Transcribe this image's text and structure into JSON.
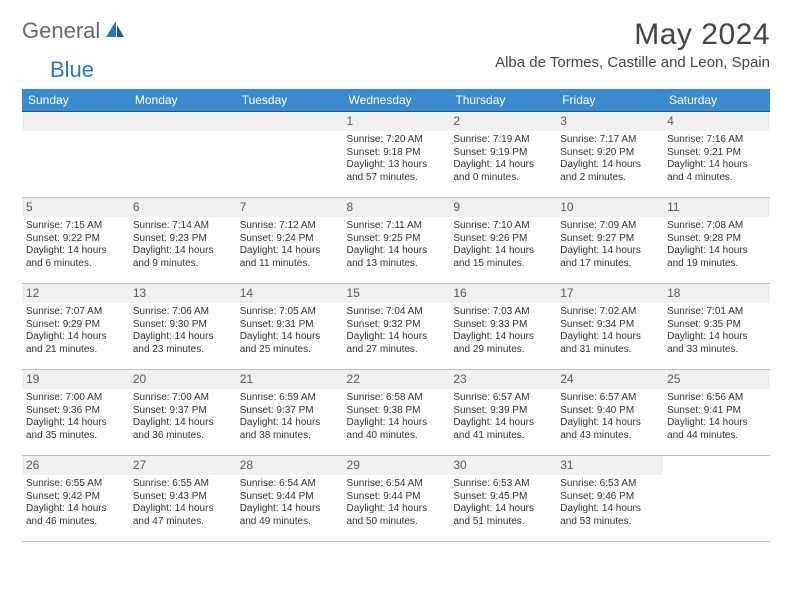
{
  "brand": {
    "part_a": "General",
    "part_b": "Blue"
  },
  "title": "May 2024",
  "location": "Alba de Tormes, Castille and Leon, Spain",
  "colors": {
    "header_bg": "#3a8bd0",
    "header_text": "#ffffff",
    "row_divider": "#1f5c8e",
    "day_bg": "#eef0f2",
    "body_text": "#333333",
    "brand_gray": "#6a6a6a",
    "brand_blue": "#2b78c2"
  },
  "typography": {
    "title_fontsize": 30,
    "location_fontsize": 15,
    "header_fontsize": 12,
    "daynum_fontsize": 12,
    "cell_fontsize": 10
  },
  "layout": {
    "columns": 7,
    "rows": 5,
    "first_day_column_index": 3
  },
  "weekdays": [
    "Sunday",
    "Monday",
    "Tuesday",
    "Wednesday",
    "Thursday",
    "Friday",
    "Saturday"
  ],
  "days": {
    "1": {
      "sunrise": "Sunrise: 7:20 AM",
      "sunset": "Sunset: 9:18 PM",
      "daylight": "Daylight: 13 hours and 57 minutes."
    },
    "2": {
      "sunrise": "Sunrise: 7:19 AM",
      "sunset": "Sunset: 9:19 PM",
      "daylight": "Daylight: 14 hours and 0 minutes."
    },
    "3": {
      "sunrise": "Sunrise: 7:17 AM",
      "sunset": "Sunset: 9:20 PM",
      "daylight": "Daylight: 14 hours and 2 minutes."
    },
    "4": {
      "sunrise": "Sunrise: 7:16 AM",
      "sunset": "Sunset: 9:21 PM",
      "daylight": "Daylight: 14 hours and 4 minutes."
    },
    "5": {
      "sunrise": "Sunrise: 7:15 AM",
      "sunset": "Sunset: 9:22 PM",
      "daylight": "Daylight: 14 hours and 6 minutes."
    },
    "6": {
      "sunrise": "Sunrise: 7:14 AM",
      "sunset": "Sunset: 9:23 PM",
      "daylight": "Daylight: 14 hours and 9 minutes."
    },
    "7": {
      "sunrise": "Sunrise: 7:12 AM",
      "sunset": "Sunset: 9:24 PM",
      "daylight": "Daylight: 14 hours and 11 minutes."
    },
    "8": {
      "sunrise": "Sunrise: 7:11 AM",
      "sunset": "Sunset: 9:25 PM",
      "daylight": "Daylight: 14 hours and 13 minutes."
    },
    "9": {
      "sunrise": "Sunrise: 7:10 AM",
      "sunset": "Sunset: 9:26 PM",
      "daylight": "Daylight: 14 hours and 15 minutes."
    },
    "10": {
      "sunrise": "Sunrise: 7:09 AM",
      "sunset": "Sunset: 9:27 PM",
      "daylight": "Daylight: 14 hours and 17 minutes."
    },
    "11": {
      "sunrise": "Sunrise: 7:08 AM",
      "sunset": "Sunset: 9:28 PM",
      "daylight": "Daylight: 14 hours and 19 minutes."
    },
    "12": {
      "sunrise": "Sunrise: 7:07 AM",
      "sunset": "Sunset: 9:29 PM",
      "daylight": "Daylight: 14 hours and 21 minutes."
    },
    "13": {
      "sunrise": "Sunrise: 7:06 AM",
      "sunset": "Sunset: 9:30 PM",
      "daylight": "Daylight: 14 hours and 23 minutes."
    },
    "14": {
      "sunrise": "Sunrise: 7:05 AM",
      "sunset": "Sunset: 9:31 PM",
      "daylight": "Daylight: 14 hours and 25 minutes."
    },
    "15": {
      "sunrise": "Sunrise: 7:04 AM",
      "sunset": "Sunset: 9:32 PM",
      "daylight": "Daylight: 14 hours and 27 minutes."
    },
    "16": {
      "sunrise": "Sunrise: 7:03 AM",
      "sunset": "Sunset: 9:33 PM",
      "daylight": "Daylight: 14 hours and 29 minutes."
    },
    "17": {
      "sunrise": "Sunrise: 7:02 AM",
      "sunset": "Sunset: 9:34 PM",
      "daylight": "Daylight: 14 hours and 31 minutes."
    },
    "18": {
      "sunrise": "Sunrise: 7:01 AM",
      "sunset": "Sunset: 9:35 PM",
      "daylight": "Daylight: 14 hours and 33 minutes."
    },
    "19": {
      "sunrise": "Sunrise: 7:00 AM",
      "sunset": "Sunset: 9:36 PM",
      "daylight": "Daylight: 14 hours and 35 minutes."
    },
    "20": {
      "sunrise": "Sunrise: 7:00 AM",
      "sunset": "Sunset: 9:37 PM",
      "daylight": "Daylight: 14 hours and 36 minutes."
    },
    "21": {
      "sunrise": "Sunrise: 6:59 AM",
      "sunset": "Sunset: 9:37 PM",
      "daylight": "Daylight: 14 hours and 38 minutes."
    },
    "22": {
      "sunrise": "Sunrise: 6:58 AM",
      "sunset": "Sunset: 9:38 PM",
      "daylight": "Daylight: 14 hours and 40 minutes."
    },
    "23": {
      "sunrise": "Sunrise: 6:57 AM",
      "sunset": "Sunset: 9:39 PM",
      "daylight": "Daylight: 14 hours and 41 minutes."
    },
    "24": {
      "sunrise": "Sunrise: 6:57 AM",
      "sunset": "Sunset: 9:40 PM",
      "daylight": "Daylight: 14 hours and 43 minutes."
    },
    "25": {
      "sunrise": "Sunrise: 6:56 AM",
      "sunset": "Sunset: 9:41 PM",
      "daylight": "Daylight: 14 hours and 44 minutes."
    },
    "26": {
      "sunrise": "Sunrise: 6:55 AM",
      "sunset": "Sunset: 9:42 PM",
      "daylight": "Daylight: 14 hours and 46 minutes."
    },
    "27": {
      "sunrise": "Sunrise: 6:55 AM",
      "sunset": "Sunset: 9:43 PM",
      "daylight": "Daylight: 14 hours and 47 minutes."
    },
    "28": {
      "sunrise": "Sunrise: 6:54 AM",
      "sunset": "Sunset: 9:44 PM",
      "daylight": "Daylight: 14 hours and 49 minutes."
    },
    "29": {
      "sunrise": "Sunrise: 6:54 AM",
      "sunset": "Sunset: 9:44 PM",
      "daylight": "Daylight: 14 hours and 50 minutes."
    },
    "30": {
      "sunrise": "Sunrise: 6:53 AM",
      "sunset": "Sunset: 9:45 PM",
      "daylight": "Daylight: 14 hours and 51 minutes."
    },
    "31": {
      "sunrise": "Sunrise: 6:53 AM",
      "sunset": "Sunset: 9:46 PM",
      "daylight": "Daylight: 14 hours and 53 minutes."
    }
  }
}
